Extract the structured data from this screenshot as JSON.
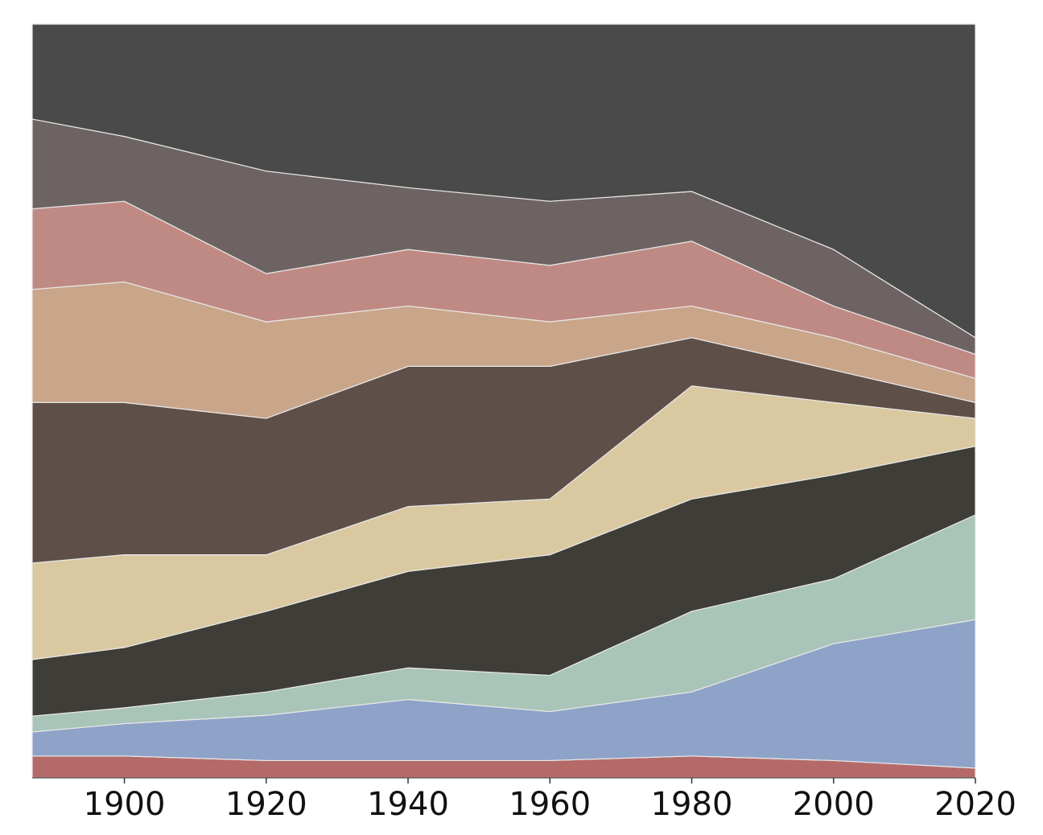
{
  "chart_data": {
    "type": "stacked_area",
    "x": [
      1887,
      1900,
      1920,
      1940,
      1960,
      1980,
      2000,
      2020
    ],
    "xlim": [
      1887,
      2020
    ],
    "xticks": [
      1900,
      1920,
      1940,
      1960,
      1980,
      2000,
      2020
    ],
    "ylim": [
      0,
      100
    ],
    "series": [
      {
        "color": "#b56a6a",
        "values": [
          2.9,
          2.9,
          2.3,
          2.3,
          2.3,
          2.9,
          2.3,
          1.3
        ]
      },
      {
        "color": "#8fa3c8",
        "values": [
          3.2,
          4.3,
          6.0,
          8.1,
          6.5,
          8.5,
          15.5,
          19.7
        ]
      },
      {
        "color": "#a9c4b8",
        "values": [
          2.1,
          2.1,
          3.1,
          4.2,
          4.8,
          10.7,
          8.6,
          13.9
        ]
      },
      {
        "color": "#3e3d38",
        "values": [
          7.5,
          8.0,
          10.7,
          12.8,
          16.0,
          14.9,
          13.8,
          9.1
        ]
      },
      {
        "color": "#d9c8a0",
        "values": [
          12.8,
          12.3,
          7.5,
          8.6,
          7.4,
          15.0,
          9.6,
          3.7
        ]
      },
      {
        "color": "#5e4f48",
        "values": [
          21.3,
          20.2,
          18.1,
          18.6,
          17.6,
          6.4,
          4.3,
          2.1
        ]
      },
      {
        "color": "#c9a58a",
        "values": [
          15.0,
          16.0,
          12.8,
          8.0,
          5.9,
          4.2,
          4.3,
          3.2
        ]
      },
      {
        "color": "#c08a84",
        "values": [
          10.7,
          10.7,
          6.4,
          7.5,
          7.5,
          8.6,
          4.2,
          3.2
        ]
      },
      {
        "color": "#6d6362",
        "values": [
          11.9,
          8.6,
          13.6,
          8.2,
          8.5,
          6.6,
          7.5,
          2.2
        ]
      },
      {
        "color": "#4a4a4a",
        "values": [
          12.6,
          14.9,
          19.5,
          21.7,
          23.5,
          22.2,
          29.9,
          41.6
        ]
      }
    ]
  }
}
